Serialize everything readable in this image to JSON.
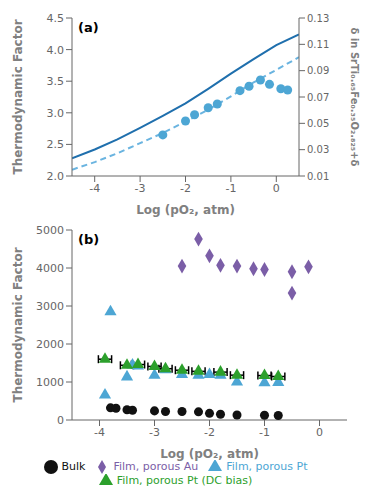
{
  "chart_data": [
    {
      "type": "line",
      "title": "(a)",
      "x_label": "Log (pO₂, atm)",
      "y_label": "Thermodynamic Factor",
      "y2_label": "δ in SrTi₀.₆₅Fe₀.₃₅O₂.₈₂₅+δ",
      "xlim": [
        -4.5,
        0.5
      ],
      "xticks": [
        -4,
        -3,
        -2,
        -1,
        0
      ],
      "ylim": [
        2.0,
        4.5
      ],
      "yticks": [
        {
          "value": 2.0,
          "label": "2.0"
        },
        2.5,
        {
          "value": 3.0,
          "label": "3.0"
        },
        3.5,
        {
          "value": 4.0,
          "label": "4.0"
        },
        4.5
      ],
      "y2lim": [
        0.01,
        0.13
      ],
      "y2ticks": [
        0.01,
        0.03,
        0.05,
        0.07,
        0.09,
        0.11,
        0.13
      ],
      "grid": false,
      "series": [
        {
          "type": "line",
          "color": "#1f6fad",
          "line_style": "solid",
          "x": [
            -4.5,
            -4.0,
            -3.5,
            -3.0,
            -2.5,
            -2.0,
            -1.5,
            -1.0,
            -0.5,
            0.0,
            0.5
          ],
          "values": [
            2.28,
            2.42,
            2.58,
            2.76,
            2.95,
            3.15,
            3.38,
            3.62,
            3.85,
            4.07,
            4.24
          ]
        },
        {
          "type": "line",
          "color": "#6ab4e0",
          "line_style": "dashed",
          "x": [
            -4.5,
            -4.0,
            -3.5,
            -3.0,
            -2.5,
            -2.0,
            -1.5,
            -1.0,
            -0.5,
            0.0,
            0.5
          ],
          "values": [
            2.1,
            2.22,
            2.36,
            2.52,
            2.68,
            2.86,
            3.05,
            3.26,
            3.48,
            3.68,
            3.88
          ]
        },
        {
          "type": "scatter",
          "color": "#4da6d4",
          "marker": "circle",
          "x": [
            -2.5,
            -2.0,
            -1.8,
            -1.5,
            -1.3,
            -0.8,
            -0.6,
            -0.35,
            -0.15,
            0.1,
            0.25
          ],
          "values": [
            2.65,
            2.87,
            2.97,
            3.08,
            3.14,
            3.35,
            3.42,
            3.52,
            3.45,
            3.38,
            3.36
          ]
        }
      ]
    },
    {
      "type": "scatter",
      "title": "(b)",
      "x_label": "Log (pO₂, atm)",
      "y_label": "Thermodynamic Factor",
      "xlim": [
        -4.5,
        0.5
      ],
      "xticks": [
        -4,
        -3,
        -2,
        -1,
        0
      ],
      "ylim": [
        0,
        5000
      ],
      "yticks": [
        0,
        1000,
        2000,
        3000,
        4000,
        5000
      ],
      "grid": false,
      "legend": "bottom",
      "series": [
        {
          "name": "Bulk",
          "color": "#111111",
          "marker": "circle",
          "x": [
            -3.8,
            -3.7,
            -3.5,
            -3.4,
            -3.0,
            -2.8,
            -2.5,
            -2.2,
            -2.0,
            -1.8,
            -1.5,
            -1.0,
            -0.75
          ],
          "values": [
            320,
            310,
            270,
            255,
            240,
            225,
            225,
            215,
            175,
            150,
            130,
            125,
            120
          ]
        },
        {
          "name": "Film, porous Pt",
          "color": "#4da6d4",
          "marker": "triangle",
          "x": [
            -3.9,
            -3.8,
            -3.5,
            -3.4,
            -3.3,
            -3.0,
            -2.8,
            -2.5,
            -2.2,
            -2.0,
            -1.8,
            -1.5,
            -1.0,
            -0.75
          ],
          "values": [
            660,
            2850,
            1135,
            1450,
            1420,
            1175,
            1320,
            1200,
            1175,
            1200,
            1175,
            1000,
            980,
            990
          ]
        },
        {
          "name": "Film, porous Pt (DC bias)",
          "color": "#2ca02c",
          "marker": "triangle",
          "x": [
            -3.9,
            -3.5,
            -3.3,
            -3.0,
            -2.8,
            -2.5,
            -2.2,
            -1.8,
            -1.5,
            -1.0,
            -0.75
          ],
          "values": [
            1600,
            1440,
            1460,
            1410,
            1350,
            1310,
            1280,
            1260,
            1180,
            1170,
            1145
          ],
          "x_error": [
            0.12,
            0.12,
            0.12,
            0.12,
            0.12,
            0.12,
            0.12,
            0.12,
            0.12,
            0.12,
            0.12
          ]
        },
        {
          "name": "Film, porous Au",
          "color": "#7b5ea7",
          "marker": "diamond",
          "x": [
            -2.5,
            -2.2,
            -2.0,
            -1.8,
            -1.5,
            -1.2,
            -1.0,
            -0.5,
            -0.5,
            -0.2
          ],
          "values": [
            4050,
            4760,
            4320,
            4070,
            4050,
            3980,
            3960,
            3900,
            3340,
            4030
          ]
        }
      ]
    }
  ]
}
